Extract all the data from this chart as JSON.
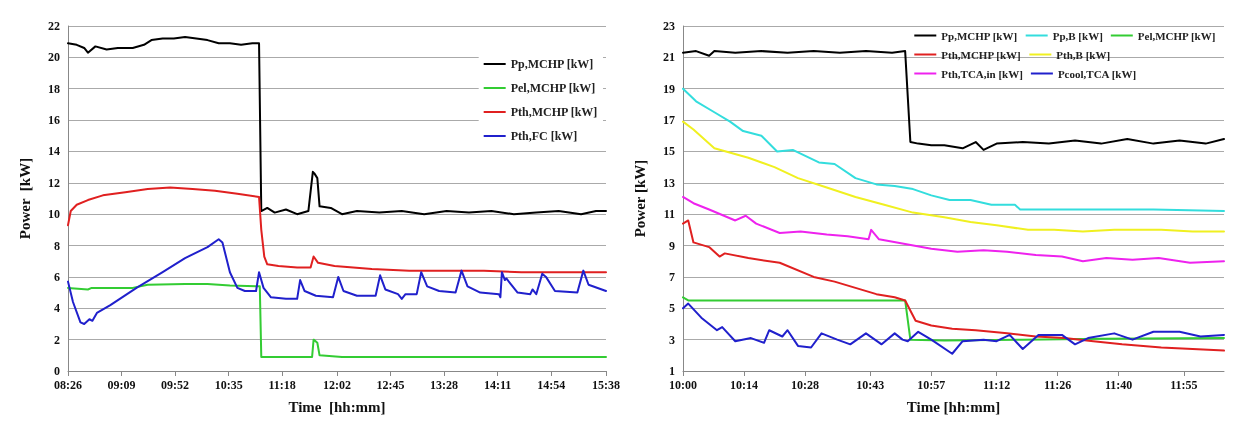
{
  "chart_data": [
    {
      "type": "line",
      "xlabel": "Time  [hh:mm]",
      "ylabel": "Power  [kW]",
      "xlim": [
        8.4333,
        15.6333
      ],
      "xticks": [
        {
          "value": 8.4333,
          "label": "08:26"
        },
        {
          "value": 9.15,
          "label": "09:09"
        },
        {
          "value": 9.8667,
          "label": "09:52"
        },
        {
          "value": 10.5833,
          "label": "10:35"
        },
        {
          "value": 11.3,
          "label": "11:18"
        },
        {
          "value": 12.0333,
          "label": "12:02"
        },
        {
          "value": 12.75,
          "label": "12:45"
        },
        {
          "value": 13.4667,
          "label": "13:28"
        },
        {
          "value": 14.1833,
          "label": "14:11"
        },
        {
          "value": 14.9,
          "label": "14:54"
        },
        {
          "value": 15.6333,
          "label": "15:38"
        }
      ],
      "ylim": [
        0,
        22
      ],
      "yticks": [
        0,
        2,
        4,
        6,
        8,
        10,
        12,
        14,
        16,
        18,
        20,
        22
      ],
      "grid": "y",
      "legend": "top right",
      "marker": "none",
      "line_style": "solid",
      "series": [
        {
          "name": "Pp,MCHP [kW]",
          "color": "#000000",
          "x": [
            8.4333,
            8.55,
            8.65,
            8.7,
            8.8,
            8.95,
            9.1,
            9.3,
            9.45,
            9.55,
            9.7,
            9.85,
            10.0,
            10.15,
            10.3,
            10.45,
            10.6,
            10.75,
            10.9,
            10.99,
            11.02,
            11.1,
            11.2,
            11.35,
            11.5,
            11.65,
            11.71,
            11.73,
            11.77,
            11.8,
            11.95,
            12.1,
            12.3,
            12.6,
            12.9,
            13.2,
            13.5,
            13.8,
            14.1,
            14.4,
            14.7,
            15.0,
            15.3,
            15.5,
            15.6333
          ],
          "values": [
            20.9,
            20.8,
            20.6,
            20.3,
            20.7,
            20.5,
            20.6,
            20.6,
            20.8,
            21.1,
            21.2,
            21.2,
            21.3,
            21.2,
            21.1,
            20.9,
            20.9,
            20.8,
            20.9,
            20.9,
            10.2,
            10.4,
            10.1,
            10.3,
            10.0,
            10.2,
            12.7,
            12.6,
            12.3,
            10.5,
            10.4,
            10.0,
            10.2,
            10.1,
            10.2,
            10.0,
            10.2,
            10.1,
            10.2,
            10.0,
            10.1,
            10.2,
            10.0,
            10.2,
            10.2
          ]
        },
        {
          "name": "Pel,MCHP [kW]",
          "color": "#33cc33",
          "x": [
            8.4333,
            8.7,
            8.75,
            9.0,
            9.3,
            9.5,
            10.0,
            10.3,
            10.6,
            11.0,
            11.02,
            11.3,
            11.7,
            11.72,
            11.77,
            11.8,
            12.1,
            13.0,
            14.0,
            15.0,
            15.6333
          ],
          "values": [
            5.3,
            5.2,
            5.3,
            5.3,
            5.3,
            5.5,
            5.55,
            5.55,
            5.45,
            5.4,
            0.9,
            0.9,
            0.9,
            2.0,
            1.8,
            1.0,
            0.9,
            0.9,
            0.9,
            0.9,
            0.9
          ]
        },
        {
          "name": "Pth,MCHP [kW]",
          "color": "#e02020",
          "x": [
            8.4333,
            8.47,
            8.55,
            8.7,
            8.9,
            9.2,
            9.5,
            9.8,
            10.1,
            10.4,
            10.7,
            10.99,
            11.02,
            11.06,
            11.1,
            11.25,
            11.5,
            11.68,
            11.72,
            11.78,
            12.0,
            12.5,
            13.0,
            13.5,
            14.0,
            14.5,
            15.0,
            15.6333
          ],
          "values": [
            9.3,
            10.2,
            10.6,
            10.9,
            11.2,
            11.4,
            11.6,
            11.7,
            11.6,
            11.5,
            11.3,
            11.1,
            9.0,
            7.3,
            6.8,
            6.7,
            6.6,
            6.6,
            7.3,
            6.9,
            6.7,
            6.5,
            6.4,
            6.4,
            6.4,
            6.3,
            6.3,
            6.3
          ]
        },
        {
          "name": "Pth,FC [kW]",
          "color": "#2020cc",
          "x": [
            8.4333,
            8.5,
            8.6,
            8.65,
            8.72,
            8.76,
            8.82,
            9.0,
            9.35,
            9.7,
            10.0,
            10.3,
            10.45,
            10.5,
            10.6,
            10.7,
            10.8,
            10.95,
            10.99,
            11.05,
            11.15,
            11.35,
            11.5,
            11.54,
            11.6,
            11.75,
            11.98,
            12.05,
            12.12,
            12.3,
            12.55,
            12.61,
            12.68,
            12.85,
            12.9,
            12.95,
            13.1,
            13.16,
            13.24,
            13.4,
            13.62,
            13.7,
            13.78,
            13.95,
            14.2,
            14.22,
            14.24,
            14.28,
            14.3,
            14.45,
            14.62,
            14.65,
            14.7,
            14.78,
            14.83,
            14.95,
            15.25,
            15.33,
            15.4,
            15.6333
          ],
          "values": [
            5.7,
            4.4,
            3.1,
            3.0,
            3.3,
            3.2,
            3.7,
            4.2,
            5.3,
            6.3,
            7.2,
            7.9,
            8.4,
            8.2,
            6.3,
            5.3,
            5.1,
            5.1,
            6.3,
            5.3,
            4.7,
            4.6,
            4.6,
            5.8,
            5.1,
            4.8,
            4.7,
            6.0,
            5.1,
            4.8,
            4.8,
            6.1,
            5.2,
            4.9,
            4.6,
            4.9,
            4.9,
            6.3,
            5.4,
            5.1,
            5.0,
            6.4,
            5.4,
            5.0,
            4.9,
            4.7,
            6.3,
            5.8,
            5.9,
            5.0,
            4.9,
            5.2,
            4.9,
            6.2,
            6.0,
            5.1,
            5.0,
            6.4,
            5.5,
            5.1
          ]
        }
      ]
    },
    {
      "type": "line",
      "xlabel": "Time [hh:mm]",
      "ylabel": "Power [kW]",
      "xlim": [
        10,
        12.07
      ],
      "xticks": [
        {
          "value": 10,
          "label": "10:00"
        },
        {
          "value": 10.2333,
          "label": "10:14"
        },
        {
          "value": 10.4667,
          "label": "10:28"
        },
        {
          "value": 10.7167,
          "label": "10:43"
        },
        {
          "value": 10.95,
          "label": "10:57"
        },
        {
          "value": 11.2,
          "label": "11:12"
        },
        {
          "value": 11.4333,
          "label": "11:26"
        },
        {
          "value": 11.6667,
          "label": "11:40"
        },
        {
          "value": 11.9167,
          "label": "11:55"
        }
      ],
      "ylim": [
        1,
        23
      ],
      "yticks": [
        1,
        3,
        5,
        7,
        9,
        11,
        13,
        15,
        17,
        19,
        21,
        23
      ],
      "grid": "y",
      "legend": "top right",
      "marker": "none",
      "line_style": "solid",
      "series": [
        {
          "name": "Pp,MCHP [kW]",
          "color": "#000000",
          "x": [
            10,
            10.05,
            10.1,
            10.12,
            10.2,
            10.3,
            10.4,
            10.5,
            10.6,
            10.7,
            10.8,
            10.85,
            10.87,
            10.9,
            10.95,
            11.0,
            11.07,
            11.12,
            11.15,
            11.2,
            11.3,
            11.4,
            11.5,
            11.6,
            11.7,
            11.8,
            11.9,
            12.0,
            12.07
          ],
          "values": [
            21.3,
            21.4,
            21.1,
            21.4,
            21.3,
            21.4,
            21.3,
            21.4,
            21.3,
            21.4,
            21.3,
            21.4,
            15.6,
            15.5,
            15.4,
            15.4,
            15.2,
            15.6,
            15.1,
            15.5,
            15.6,
            15.5,
            15.7,
            15.5,
            15.8,
            15.5,
            15.7,
            15.5,
            15.8
          ]
        },
        {
          "name": "Pp,B [kW]",
          "color": "#33dddd",
          "x": [
            10,
            10.05,
            10.12,
            10.18,
            10.23,
            10.3,
            10.36,
            10.42,
            10.52,
            10.58,
            10.66,
            10.74,
            10.81,
            10.88,
            10.95,
            11.02,
            11.1,
            11.18,
            11.27,
            11.29,
            11.5,
            11.8,
            12.07
          ],
          "values": [
            19.0,
            18.2,
            17.5,
            16.9,
            16.3,
            16.0,
            15.0,
            15.1,
            14.3,
            14.2,
            13.3,
            12.9,
            12.8,
            12.6,
            12.2,
            11.9,
            11.9,
            11.6,
            11.6,
            11.3,
            11.3,
            11.3,
            11.2
          ]
        },
        {
          "name": "Pel,MCHP [kW]",
          "color": "#33cc33",
          "x": [
            10,
            10.02,
            10.3,
            10.6,
            10.85,
            10.87,
            11.0,
            11.3,
            11.6,
            12.07
          ],
          "values": [
            5.7,
            5.5,
            5.5,
            5.5,
            5.5,
            3.0,
            2.95,
            3.0,
            3.05,
            3.1
          ]
        },
        {
          "name": "Pth,MCHP [kW]",
          "color": "#e02020",
          "x": [
            10,
            10.02,
            10.04,
            10.1,
            10.14,
            10.16,
            10.25,
            10.37,
            10.5,
            10.58,
            10.66,
            10.74,
            10.81,
            10.85,
            10.89,
            10.95,
            11.03,
            11.12,
            11.24,
            11.35,
            11.46,
            11.57,
            11.68,
            11.83,
            11.95,
            12.07
          ],
          "values": [
            10.4,
            10.6,
            9.2,
            8.9,
            8.3,
            8.5,
            8.2,
            7.9,
            7.0,
            6.7,
            6.3,
            5.9,
            5.7,
            5.5,
            4.2,
            3.9,
            3.7,
            3.6,
            3.4,
            3.2,
            3.1,
            2.9,
            2.7,
            2.5,
            2.4,
            2.3
          ]
        },
        {
          "name": "Pth,B [kW]",
          "color": "#f0f020",
          "x": [
            10,
            10.04,
            10.12,
            10.25,
            10.35,
            10.44,
            10.55,
            10.66,
            10.77,
            10.88,
            11.0,
            11.1,
            11.2,
            11.32,
            11.42,
            11.53,
            11.65,
            11.83,
            11.95,
            12.07
          ],
          "values": [
            16.9,
            16.4,
            15.2,
            14.6,
            14.0,
            13.3,
            12.7,
            12.1,
            11.6,
            11.1,
            10.8,
            10.5,
            10.3,
            10.0,
            10.0,
            9.9,
            10.0,
            10.0,
            9.9,
            9.9
          ]
        },
        {
          "name": "Pth,TCA,in [kW]",
          "color": "#ee22ee",
          "x": [
            10,
            10.04,
            10.1,
            10.2,
            10.24,
            10.28,
            10.37,
            10.45,
            10.55,
            10.63,
            10.71,
            10.72,
            10.75,
            10.85,
            10.95,
            11.05,
            11.15,
            11.24,
            11.35,
            11.45,
            11.53,
            11.62,
            11.72,
            11.82,
            11.94,
            12.07
          ],
          "values": [
            12.1,
            11.7,
            11.3,
            10.6,
            10.9,
            10.4,
            9.8,
            9.9,
            9.7,
            9.6,
            9.4,
            10.0,
            9.4,
            9.1,
            8.8,
            8.6,
            8.7,
            8.6,
            8.4,
            8.3,
            8.0,
            8.2,
            8.1,
            8.2,
            7.9,
            8.0
          ]
        },
        {
          "name": "Pcool,TCA [kW]",
          "color": "#2020cc",
          "x": [
            10,
            10.02,
            10.07,
            10.13,
            10.15,
            10.2,
            10.26,
            10.31,
            10.33,
            10.38,
            10.4,
            10.44,
            10.49,
            10.53,
            10.59,
            10.64,
            10.7,
            10.76,
            10.81,
            10.84,
            10.86,
            10.9,
            10.95,
            11.03,
            11.07,
            11.15,
            11.2,
            11.25,
            11.3,
            11.36,
            11.45,
            11.5,
            11.55,
            11.65,
            11.72,
            11.8,
            11.9,
            11.98,
            12.07
          ],
          "values": [
            5.0,
            5.3,
            4.4,
            3.6,
            3.8,
            2.9,
            3.1,
            2.8,
            3.6,
            3.2,
            3.6,
            2.6,
            2.5,
            3.4,
            3.0,
            2.7,
            3.4,
            2.7,
            3.4,
            3.0,
            2.9,
            3.5,
            3.0,
            2.1,
            2.9,
            3.0,
            2.9,
            3.3,
            2.4,
            3.3,
            3.3,
            2.7,
            3.1,
            3.4,
            3.0,
            3.5,
            3.5,
            3.2,
            3.3
          ]
        }
      ]
    }
  ]
}
